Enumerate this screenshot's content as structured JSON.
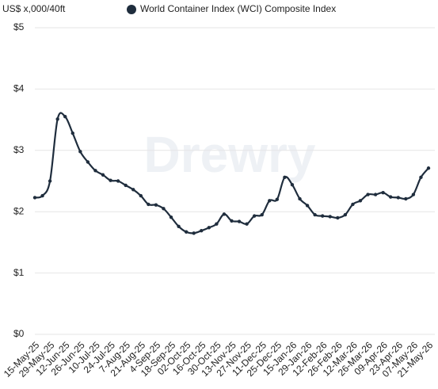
{
  "chart_data": {
    "type": "line",
    "y_axis_title": "US$ x,000/40ft",
    "watermark": "Drewry",
    "categories": [
      "15-May-25",
      null,
      "29-May-25",
      null,
      "12-Jun-25",
      null,
      "26-Jun-25",
      null,
      "10-Jul-25",
      null,
      "24-Jul-25",
      null,
      "7-Aug-25",
      null,
      "21-Aug-25",
      null,
      "4-Sep-25",
      null,
      "18-Sep-25",
      null,
      "02-Oct-25",
      null,
      "16-Oct-25",
      null,
      "30-Oct-25",
      null,
      "13-Nov-25",
      null,
      "27-Nov-25",
      null,
      "11-Dec-25",
      null,
      "25-Dec-25",
      null,
      "15-Jan-26",
      null,
      "29-Jan-26",
      null,
      "12-Feb-26",
      null,
      "26-Feb-26",
      null,
      "12-Mar-26",
      null,
      "26-Mar-26",
      null,
      "09-Apr-26",
      null,
      "23-Apr-26",
      null,
      "07-May-26",
      null,
      "21-May-26"
    ],
    "series": [
      {
        "name": "World Container Index (WCI) Composite Index",
        "color": "#1f2d3d",
        "values": [
          2.23,
          2.26,
          2.5,
          3.51,
          3.55,
          3.28,
          2.98,
          2.81,
          2.67,
          2.6,
          2.51,
          2.5,
          2.43,
          2.36,
          2.26,
          2.12,
          2.11,
          2.05,
          1.91,
          1.76,
          1.67,
          1.65,
          1.69,
          1.74,
          1.8,
          1.96,
          1.85,
          1.84,
          1.8,
          1.93,
          1.95,
          2.18,
          2.2,
          2.56,
          2.44,
          2.21,
          2.1,
          1.95,
          1.93,
          1.92,
          1.9,
          1.95,
          2.12,
          2.18,
          2.28,
          2.28,
          2.31,
          2.24,
          2.23,
          2.21,
          2.28,
          2.56,
          2.71
        ]
      }
    ],
    "ylim": [
      0,
      5
    ],
    "yticks": [
      {
        "value": 0,
        "label": "$0"
      },
      {
        "value": 1,
        "label": "$1"
      },
      {
        "value": 2,
        "label": "$2"
      },
      {
        "value": 3,
        "label": "$3"
      },
      {
        "value": 4,
        "label": "$4"
      },
      {
        "value": 5,
        "label": "$5"
      }
    ],
    "grid": true
  }
}
